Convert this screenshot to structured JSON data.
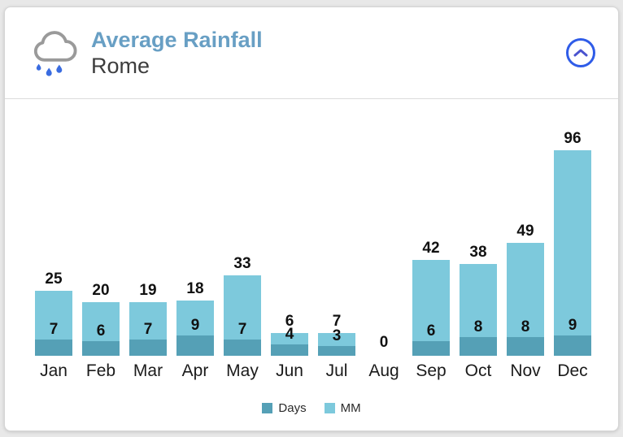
{
  "header": {
    "title": "Average Rainfall",
    "subtitle": "Rome",
    "weather_icon": "rain-cloud-icon",
    "collapse_icon": "chevron-up-icon"
  },
  "colors": {
    "title": "#689fc4",
    "subtitle": "#3d3d3d",
    "days": "#55a0b6",
    "mm": "#7dc9dc",
    "collapse_ring": "#2f5ce8",
    "chevron": "#4a53cf",
    "cloud_outline": "#9a9a9a",
    "raindrop": "#3a6ce0",
    "value_label": "#111111"
  },
  "chart_data": {
    "type": "bar",
    "stacked": true,
    "title": "Average Rainfall",
    "subtitle": "Rome",
    "categories": [
      "Jan",
      "Feb",
      "Mar",
      "Apr",
      "May",
      "Jun",
      "Jul",
      "Aug",
      "Sep",
      "Oct",
      "Nov",
      "Dec"
    ],
    "series": [
      {
        "name": "Days",
        "color": "#55a0b6",
        "values": [
          7,
          6,
          7,
          9,
          7,
          4,
          3,
          0,
          6,
          8,
          8,
          9
        ]
      },
      {
        "name": "MM",
        "color": "#7dc9dc",
        "values": [
          25,
          20,
          19,
          18,
          33,
          6,
          7,
          0,
          42,
          38,
          49,
          96
        ]
      }
    ],
    "value_labels": true,
    "grid": false,
    "y_axis_visible": false,
    "legend_position": "bottom",
    "zero_label": "0"
  }
}
